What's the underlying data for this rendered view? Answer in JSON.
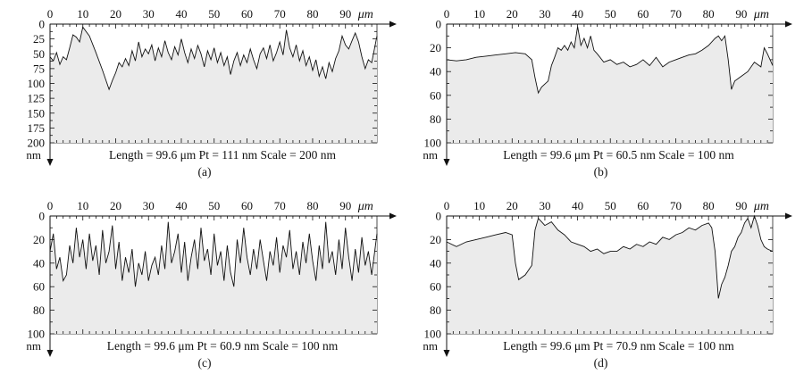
{
  "chart_data": [
    {
      "type": "area",
      "panel_label": "(a)",
      "x_unit": "μm",
      "y_unit": "nm",
      "x_ticks": [
        0,
        10,
        20,
        30,
        40,
        50,
        60,
        70,
        80,
        90
      ],
      "y_ticks": [
        0,
        25,
        50,
        75,
        100,
        125,
        150,
        175,
        200
      ],
      "xlim": [
        0,
        99.6
      ],
      "ylim": [
        0,
        200
      ],
      "y_inverted": true,
      "info": "Length = 99.6 μm  Pt = 111 nm Scale = 200 nm",
      "x": [
        0,
        1,
        2,
        3,
        4,
        5,
        6,
        7,
        8,
        9,
        10,
        12,
        14,
        16,
        18,
        19,
        20,
        21,
        22,
        23,
        24,
        25,
        26,
        27,
        28,
        29,
        30,
        31,
        32,
        33,
        34,
        35,
        36,
        37,
        38,
        39,
        40,
        41,
        42,
        43,
        44,
        45,
        46,
        47,
        48,
        49,
        50,
        51,
        52,
        53,
        54,
        55,
        56,
        57,
        58,
        59,
        60,
        61,
        62,
        63,
        64,
        65,
        66,
        67,
        68,
        69,
        70,
        71,
        72,
        73,
        74,
        75,
        76,
        77,
        78,
        79,
        80,
        81,
        82,
        83,
        84,
        85,
        86,
        87,
        88,
        89,
        90,
        91,
        92,
        93,
        94,
        95,
        96,
        97,
        98,
        99.6
      ],
      "y": [
        55,
        62,
        48,
        68,
        55,
        60,
        40,
        18,
        22,
        30,
        5,
        20,
        48,
        78,
        110,
        95,
        82,
        65,
        72,
        58,
        70,
        45,
        62,
        30,
        55,
        42,
        50,
        35,
        62,
        40,
        55,
        28,
        48,
        60,
        38,
        52,
        25,
        48,
        65,
        42,
        58,
        36,
        50,
        72,
        45,
        60,
        40,
        65,
        48,
        70,
        55,
        85,
        62,
        48,
        70,
        52,
        65,
        42,
        60,
        75,
        50,
        40,
        58,
        35,
        62,
        48,
        30,
        52,
        10,
        40,
        55,
        35,
        62,
        45,
        70,
        55,
        78,
        60,
        88,
        72,
        92,
        65,
        80,
        58,
        45,
        20,
        35,
        42,
        28,
        15,
        30,
        55,
        75,
        60,
        65,
        20
      ]
    },
    {
      "type": "area",
      "panel_label": "(b)",
      "x_unit": "μm",
      "y_unit": "nm",
      "x_ticks": [
        0,
        10,
        20,
        30,
        40,
        50,
        60,
        70,
        80,
        90
      ],
      "y_ticks": [
        0,
        20,
        40,
        60,
        80,
        100
      ],
      "xlim": [
        0,
        99.6
      ],
      "ylim": [
        0,
        100
      ],
      "y_inverted": true,
      "info": "Length = 99.6 μm  Pt = 60.5 nm Scale = 100 nm",
      "x": [
        0,
        3,
        6,
        9,
        12,
        15,
        18,
        21,
        24,
        26,
        27,
        28,
        29,
        31,
        32,
        33,
        34,
        35,
        36,
        37,
        38,
        39,
        40,
        41,
        42,
        43,
        44,
        45,
        46,
        48,
        50,
        52,
        54,
        56,
        58,
        60,
        62,
        64,
        66,
        68,
        70,
        72,
        74,
        76,
        78,
        80,
        82,
        83,
        84,
        85,
        86,
        87,
        88,
        90,
        92,
        94,
        96,
        97,
        98,
        99.6
      ],
      "y": [
        30,
        31,
        30,
        28,
        27,
        26,
        25,
        24,
        25,
        30,
        45,
        58,
        53,
        48,
        35,
        28,
        20,
        22,
        18,
        22,
        15,
        20,
        2,
        18,
        12,
        20,
        10,
        22,
        25,
        32,
        30,
        34,
        32,
        36,
        34,
        30,
        35,
        28,
        36,
        32,
        30,
        28,
        26,
        25,
        22,
        18,
        12,
        10,
        14,
        10,
        30,
        55,
        48,
        44,
        40,
        32,
        36,
        20,
        25,
        35
      ]
    },
    {
      "type": "area",
      "panel_label": "(c)",
      "x_unit": "μm",
      "y_unit": "nm",
      "x_ticks": [
        0,
        10,
        20,
        30,
        40,
        50,
        60,
        70,
        80,
        90
      ],
      "y_ticks": [
        0,
        20,
        40,
        60,
        80,
        100
      ],
      "xlim": [
        0,
        99.6
      ],
      "ylim": [
        0,
        100
      ],
      "y_inverted": true,
      "info": "Length = 99.6 μm  Pt = 60.9 nm Scale = 100 nm",
      "x": [
        0,
        1,
        2,
        3,
        4,
        5,
        6,
        7,
        8,
        9,
        10,
        11,
        12,
        13,
        14,
        15,
        16,
        17,
        18,
        19,
        20,
        21,
        22,
        23,
        24,
        25,
        26,
        27,
        28,
        29,
        30,
        31,
        32,
        33,
        34,
        35,
        36,
        37,
        38,
        39,
        40,
        41,
        42,
        43,
        44,
        45,
        46,
        47,
        48,
        49,
        50,
        51,
        52,
        53,
        54,
        55,
        56,
        57,
        58,
        59,
        60,
        61,
        62,
        63,
        64,
        65,
        66,
        67,
        68,
        69,
        70,
        71,
        72,
        73,
        74,
        75,
        76,
        77,
        78,
        79,
        80,
        81,
        82,
        83,
        84,
        85,
        86,
        87,
        88,
        89,
        90,
        91,
        92,
        93,
        94,
        95,
        96,
        97,
        98,
        99.6
      ],
      "y": [
        30,
        15,
        45,
        35,
        55,
        50,
        25,
        40,
        10,
        35,
        20,
        45,
        15,
        38,
        25,
        50,
        12,
        40,
        30,
        8,
        45,
        22,
        55,
        35,
        48,
        28,
        60,
        40,
        50,
        30,
        55,
        42,
        35,
        50,
        25,
        45,
        5,
        40,
        30,
        15,
        48,
        22,
        55,
        35,
        20,
        45,
        10,
        38,
        28,
        50,
        15,
        42,
        30,
        55,
        25,
        48,
        60,
        20,
        40,
        10,
        35,
        50,
        28,
        45,
        20,
        38,
        55,
        30,
        42,
        18,
        48,
        25,
        35,
        12,
        45,
        30,
        50,
        22,
        40,
        15,
        38,
        55,
        25,
        45,
        5,
        40,
        30,
        50,
        20,
        45,
        10,
        35,
        55,
        28,
        48,
        18,
        42,
        30,
        50,
        15
      ]
    },
    {
      "type": "area",
      "panel_label": "(d)",
      "x_unit": "μm",
      "y_unit": "nm",
      "x_ticks": [
        0,
        10,
        20,
        30,
        40,
        50,
        60,
        70,
        80,
        90
      ],
      "y_ticks": [
        0,
        20,
        40,
        60,
        80,
        100
      ],
      "xlim": [
        0,
        99.6
      ],
      "ylim": [
        0,
        100
      ],
      "y_inverted": true,
      "info": "Length = 99.6 μm  Pt = 70.9 nm Scale = 100 nm",
      "x": [
        0,
        3,
        6,
        9,
        12,
        15,
        18,
        20,
        21,
        22,
        24,
        26,
        27,
        28,
        29,
        30,
        32,
        34,
        36,
        38,
        40,
        42,
        44,
        46,
        48,
        50,
        52,
        54,
        56,
        58,
        60,
        62,
        64,
        66,
        68,
        70,
        72,
        74,
        76,
        78,
        80,
        81,
        82,
        83,
        84,
        85,
        86,
        87,
        88,
        89,
        90,
        91,
        92,
        93,
        94,
        95,
        96,
        97,
        98,
        99.6
      ],
      "y": [
        22,
        26,
        22,
        20,
        18,
        16,
        14,
        16,
        40,
        54,
        50,
        42,
        12,
        2,
        5,
        8,
        5,
        12,
        16,
        22,
        24,
        26,
        30,
        28,
        32,
        30,
        30,
        26,
        28,
        24,
        26,
        22,
        24,
        18,
        20,
        16,
        14,
        10,
        12,
        8,
        6,
        10,
        30,
        70,
        58,
        52,
        42,
        30,
        26,
        18,
        14,
        6,
        2,
        10,
        0,
        8,
        20,
        26,
        28,
        30
      ]
    }
  ]
}
